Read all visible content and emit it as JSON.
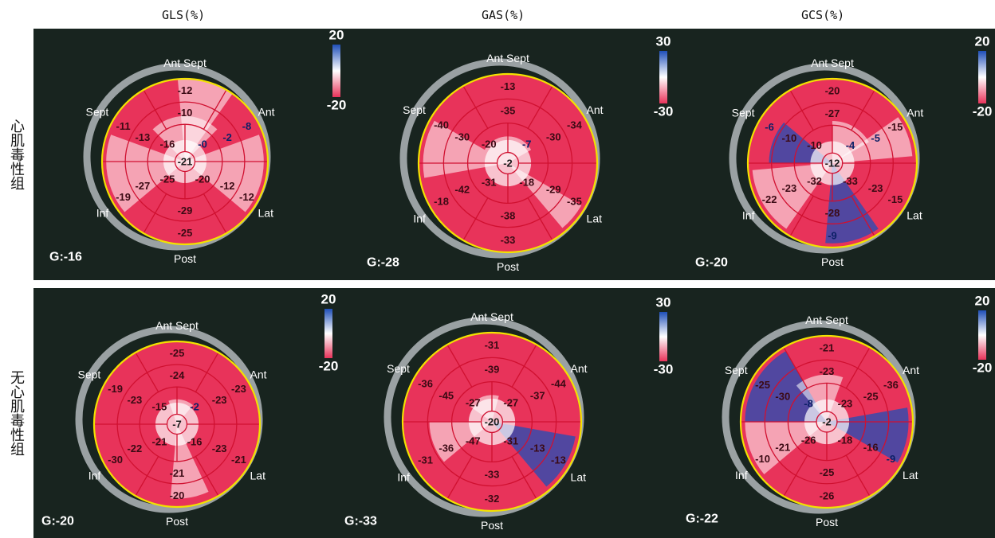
{
  "column_titles": [
    "GLS(%)",
    "GAS(%)",
    "GCS(%)"
  ],
  "row_labels": [
    "心肌毒性组",
    "无心肌毒性组"
  ],
  "wall_labels": {
    "top": "Ant Sept",
    "ant": "Ant",
    "lat": "Lat",
    "post": "Post",
    "inf": "Inf",
    "sept": "Sept"
  },
  "colors": {
    "negative": "#e8335a",
    "positive": "#1f4fb8",
    "neutral": "#ffffff",
    "ring": "#f2e200",
    "segment_lines": "#d01030",
    "background": "#18241f",
    "value_text": "#3b0a14",
    "blue_value_text": "#0b1f66"
  },
  "maps": [
    {
      "id": "tox-gls",
      "global": "G:-16",
      "scale": {
        "max": "20",
        "min": "-20"
      },
      "segments": {
        "basal": [
          "-12",
          "-8",
          "-12",
          "-25",
          "-19",
          "-11"
        ],
        "mid": [
          "-10",
          "-2",
          "-12",
          "-29",
          "-27",
          "-13"
        ],
        "apical": [
          "-0",
          "-20",
          "-25",
          "-16"
        ],
        "apex": "-21"
      }
    },
    {
      "id": "tox-gas",
      "global": "G:-28",
      "scale": {
        "max": "30",
        "min": "-30"
      },
      "segments": {
        "basal": [
          "-13",
          "-34",
          "-35",
          "-33",
          "-18",
          "-40"
        ],
        "mid": [
          "-35",
          "-30",
          "-29",
          "-38",
          "-42",
          "-30"
        ],
        "apical": [
          "-7",
          "-18",
          "-31",
          "-20"
        ],
        "apex": "-2"
      }
    },
    {
      "id": "tox-gcs",
      "global": "G:-20",
      "scale": {
        "max": "20",
        "min": "-20"
      },
      "segments": {
        "basal": [
          "-20",
          "-15",
          "-15",
          "-9",
          "-22",
          "-6"
        ],
        "mid": [
          "-27",
          "-5",
          "-23",
          "-28",
          "-23",
          "-10"
        ],
        "apical": [
          "-4",
          "-33",
          "-32",
          "-10"
        ],
        "apex": "-12"
      }
    },
    {
      "id": "non-gls",
      "global": "G:-20",
      "scale": {
        "max": "20",
        "min": "-20"
      },
      "segments": {
        "basal": [
          "-25",
          "-23",
          "-21",
          "-20",
          "-30",
          "-19"
        ],
        "mid": [
          "-24",
          "-23",
          "-23",
          "-21",
          "-22",
          "-23"
        ],
        "apical": [
          "-2",
          "-16",
          "-21",
          "-15"
        ],
        "apex": "-7"
      }
    },
    {
      "id": "non-gas",
      "global": "G:-33",
      "scale": {
        "max": "30",
        "min": "-30"
      },
      "segments": {
        "basal": [
          "-31",
          "-44",
          "-13",
          "-32",
          "-31",
          "-36"
        ],
        "mid": [
          "-39",
          "-37",
          "-13",
          "-33",
          "-36",
          "-45"
        ],
        "apical": [
          "-27",
          "-31",
          "-47",
          "-27"
        ],
        "apex": "-20"
      }
    },
    {
      "id": "non-gcs",
      "global": "G:-22",
      "scale": {
        "max": "20",
        "min": "-20"
      },
      "segments": {
        "basal": [
          "-21",
          "-36",
          "-9",
          "-26",
          "-10",
          "-25"
        ],
        "mid": [
          "-23",
          "-25",
          "-16",
          "-25",
          "-21",
          "-30"
        ],
        "apical": [
          "-23",
          "-18",
          "-26",
          "-8"
        ],
        "apex": "-2"
      }
    }
  ]
}
